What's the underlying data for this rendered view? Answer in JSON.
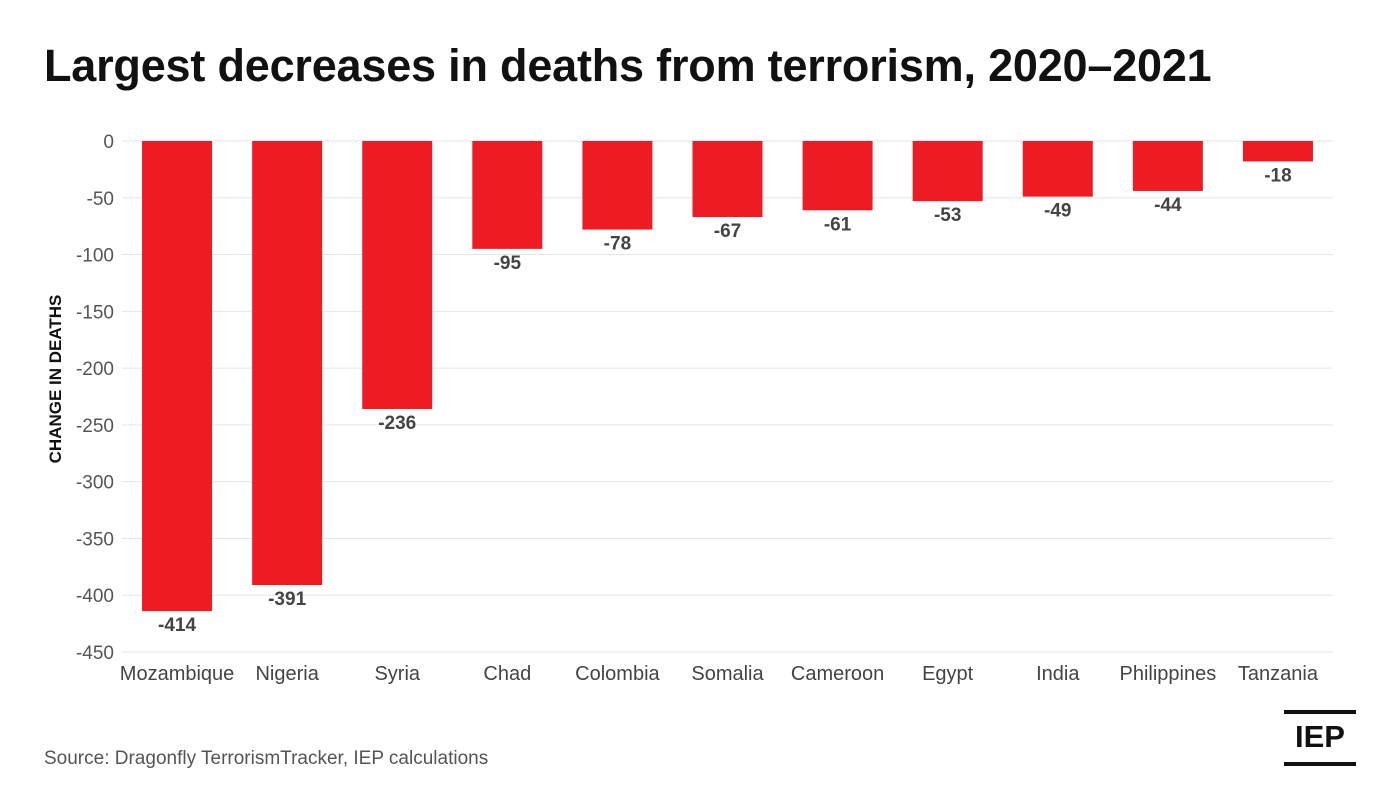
{
  "chart_data": {
    "type": "bar",
    "title": "Largest decreases in deaths from terrorism, 2020–2021",
    "xlabel": "",
    "ylabel": "CHANGE IN DEATHS",
    "ylim": [
      -450,
      0
    ],
    "yticks": [
      0,
      -50,
      -100,
      -150,
      -200,
      -250,
      -300,
      -350,
      -400,
      -450
    ],
    "grid": true,
    "categories": [
      "Mozambique",
      "Nigeria",
      "Syria",
      "Chad",
      "Colombia",
      "Somalia",
      "Cameroon",
      "Egypt",
      "India",
      "Philippines",
      "Tanzania"
    ],
    "values": [
      -414,
      -391,
      -236,
      -95,
      -78,
      -67,
      -61,
      -53,
      -49,
      -44,
      -18
    ],
    "bar_color": "#ed1c24"
  },
  "source": "Source: Dragonfly TerrorismTracker, IEP calculations",
  "logo": {
    "text": "IEP"
  }
}
